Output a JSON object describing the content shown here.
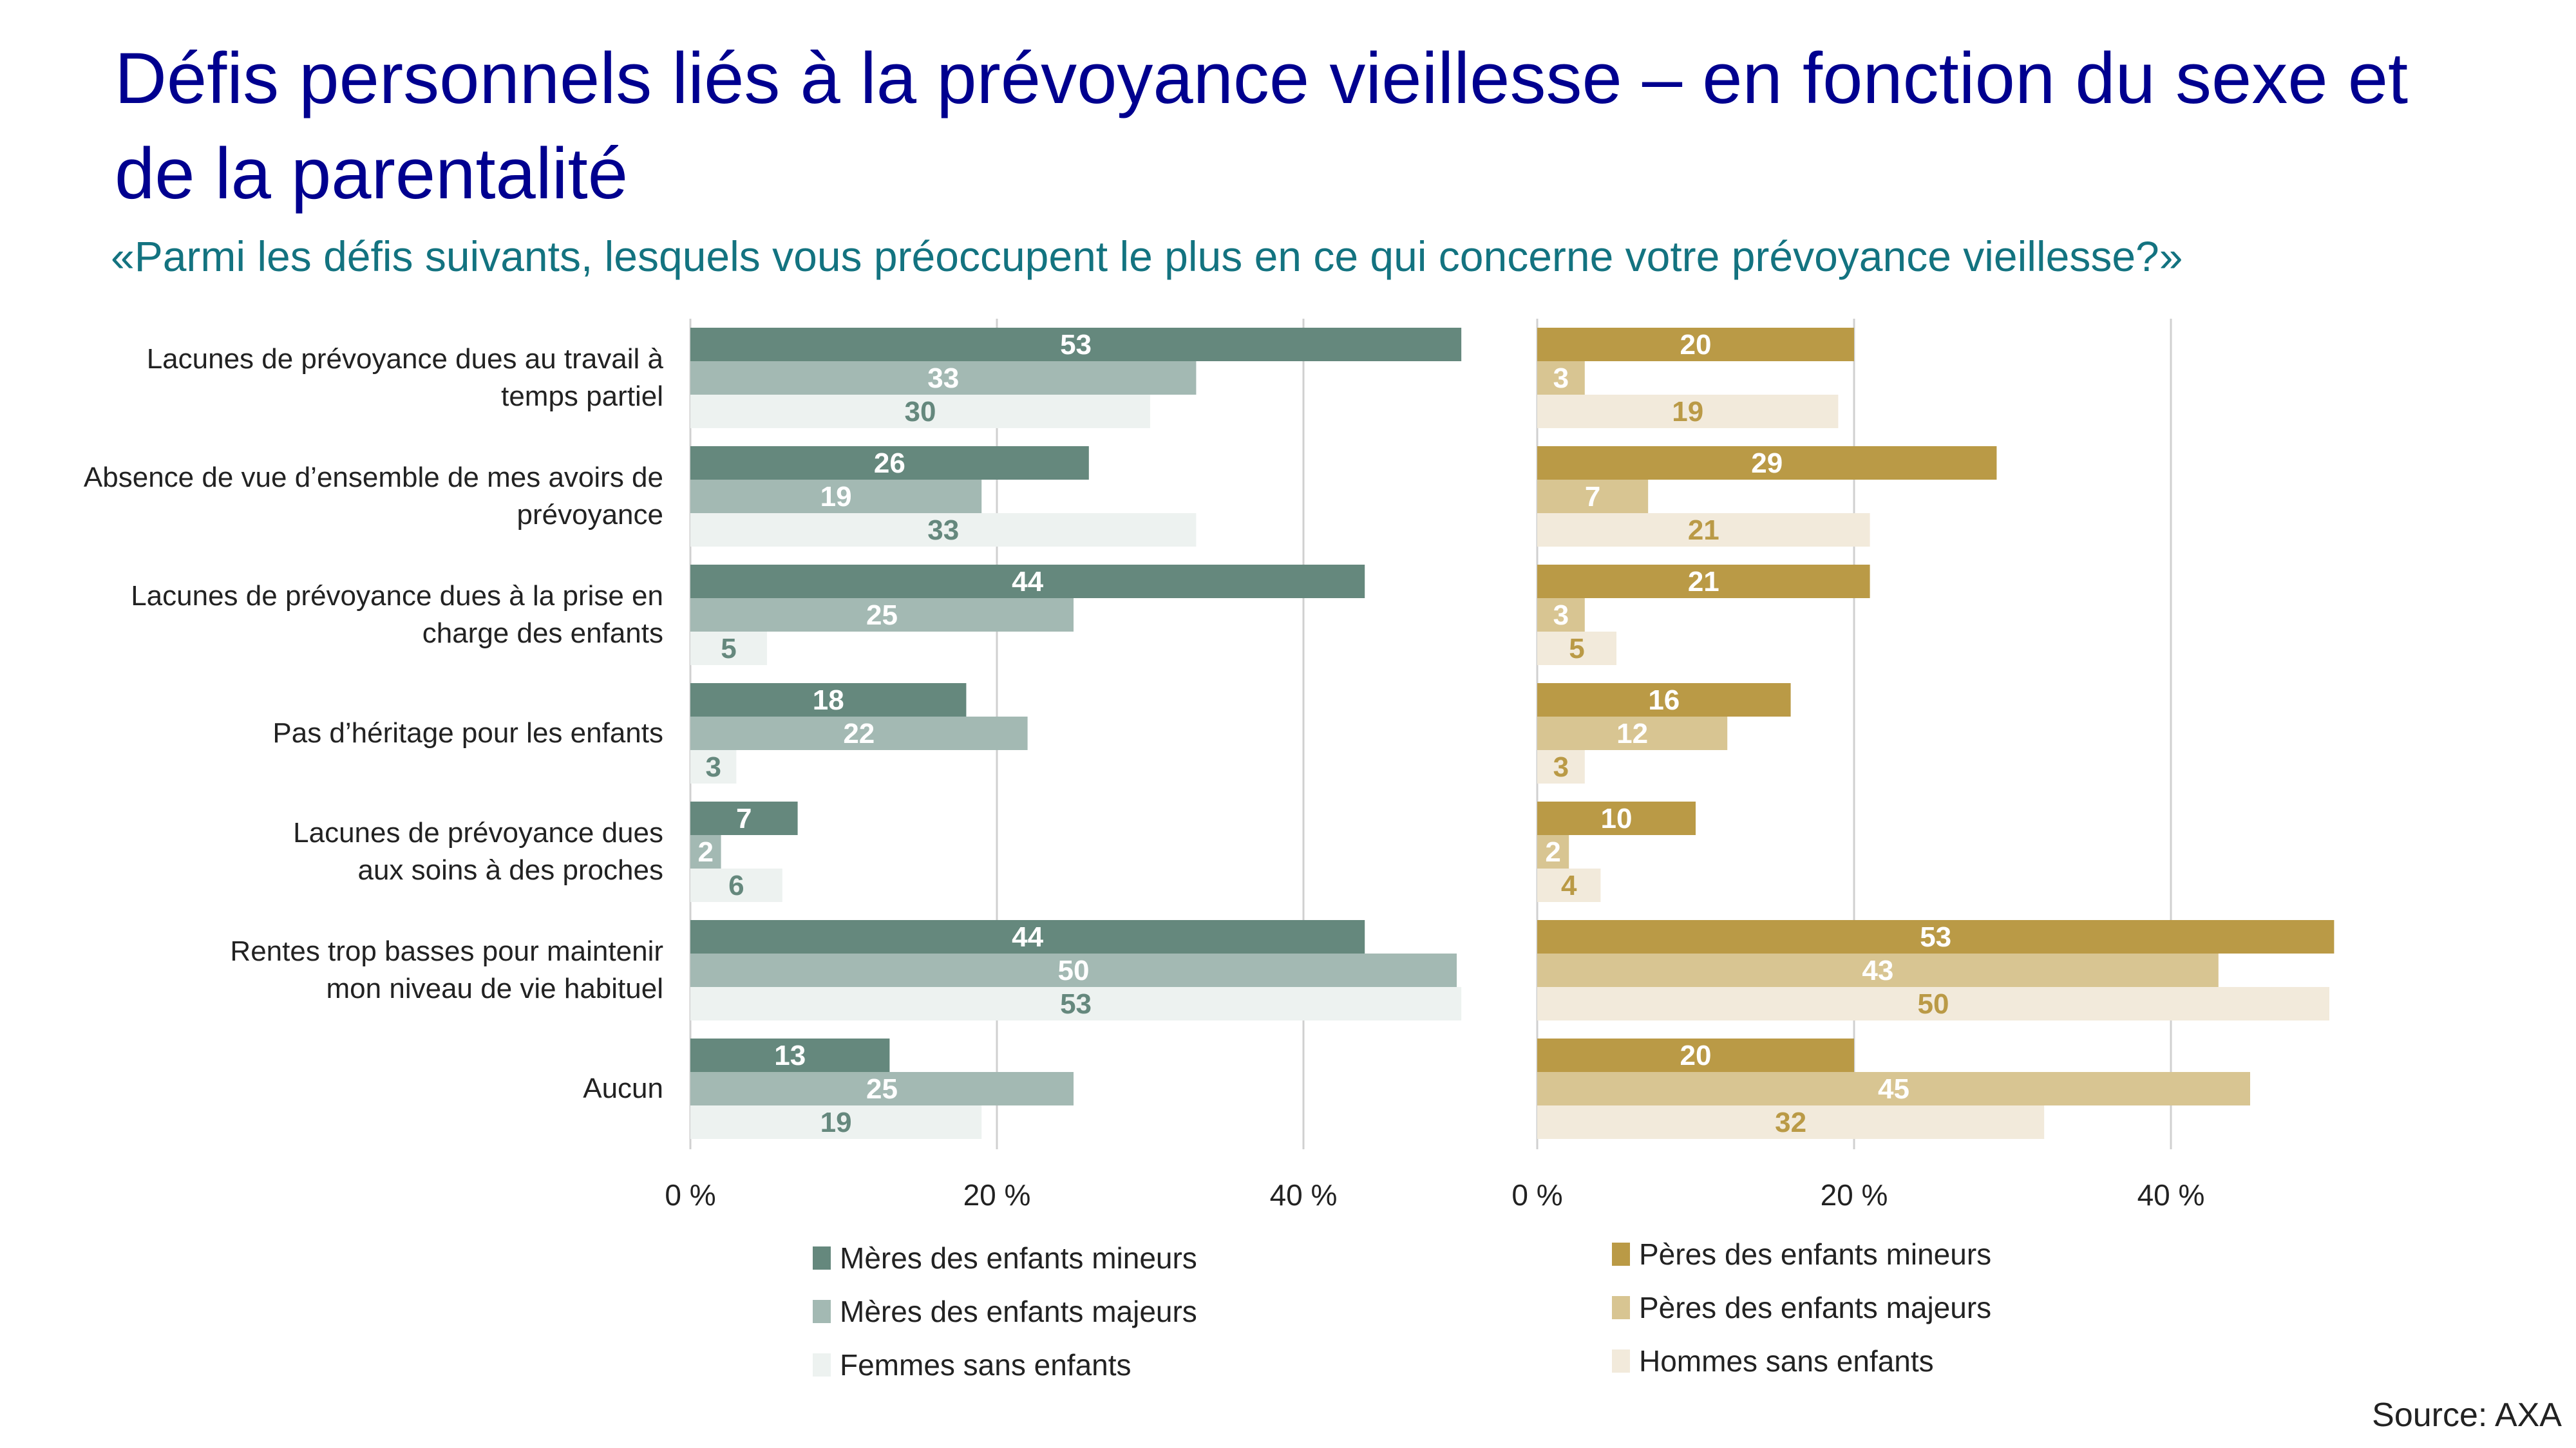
{
  "header": {
    "title": "Défis personnels liés à la prévoyance vieillesse – en fonction du sexe et de la parentalité",
    "subtitle": "«Parmi les défis suivants, lesquels vous préoccupent le plus en ce qui concerne votre prévoyance vieillesse?»"
  },
  "footer": {
    "source": "Source: AXA"
  },
  "colors": {
    "title": "#00008f",
    "subtitle": "#137380",
    "women": [
      "#65887d",
      "#a3b9b3",
      "#edf2f0"
    ],
    "men": [
      "#ba9a46",
      "#d8c592",
      "#f2eadb"
    ],
    "grid": "#d0d0d0"
  },
  "chart_data": [
    {
      "type": "bar",
      "orientation": "horizontal",
      "panel": "women",
      "categories": [
        [
          "Lacunes de prévoyance dues au travail à",
          "temps partiel"
        ],
        [
          "Absence de vue d’ensemble de mes avoirs de",
          "prévoyance"
        ],
        [
          "Lacunes de prévoyance dues à la prise en",
          "charge des enfants"
        ],
        [
          "Pas d’héritage pour les enfants"
        ],
        [
          "Lacunes de prévoyance dues",
          "aux soins à des proches"
        ],
        [
          "Rentes trop basses pour maintenir",
          "mon niveau de vie habituel"
        ],
        [
          "Aucun"
        ]
      ],
      "series": [
        {
          "name": "Mères des enfants mineurs",
          "values": [
            53,
            26,
            44,
            18,
            7,
            44,
            13
          ]
        },
        {
          "name": "Mères des enfants majeurs",
          "values": [
            33,
            19,
            25,
            22,
            2,
            50,
            25
          ]
        },
        {
          "name": "Femmes sans enfants",
          "values": [
            30,
            33,
            5,
            3,
            6,
            53,
            19
          ]
        }
      ],
      "xticks": [
        "0 %",
        "20 %",
        "40 %"
      ],
      "xlim": [
        0,
        50
      ],
      "grid": true,
      "legend": "bottom"
    },
    {
      "type": "bar",
      "orientation": "horizontal",
      "panel": "men",
      "series": [
        {
          "name": "Pères des enfants mineurs",
          "values": [
            20,
            29,
            21,
            16,
            10,
            53,
            20
          ]
        },
        {
          "name": "Pères des enfants majeurs",
          "values": [
            3,
            7,
            3,
            12,
            2,
            43,
            45
          ]
        },
        {
          "name": "Hommes sans enfants",
          "values": [
            19,
            21,
            5,
            3,
            4,
            50,
            32
          ]
        }
      ],
      "xticks": [
        "0 %",
        "20 %",
        "40 %"
      ],
      "xlim": [
        0,
        50
      ],
      "grid": true,
      "legend": "bottom"
    }
  ]
}
